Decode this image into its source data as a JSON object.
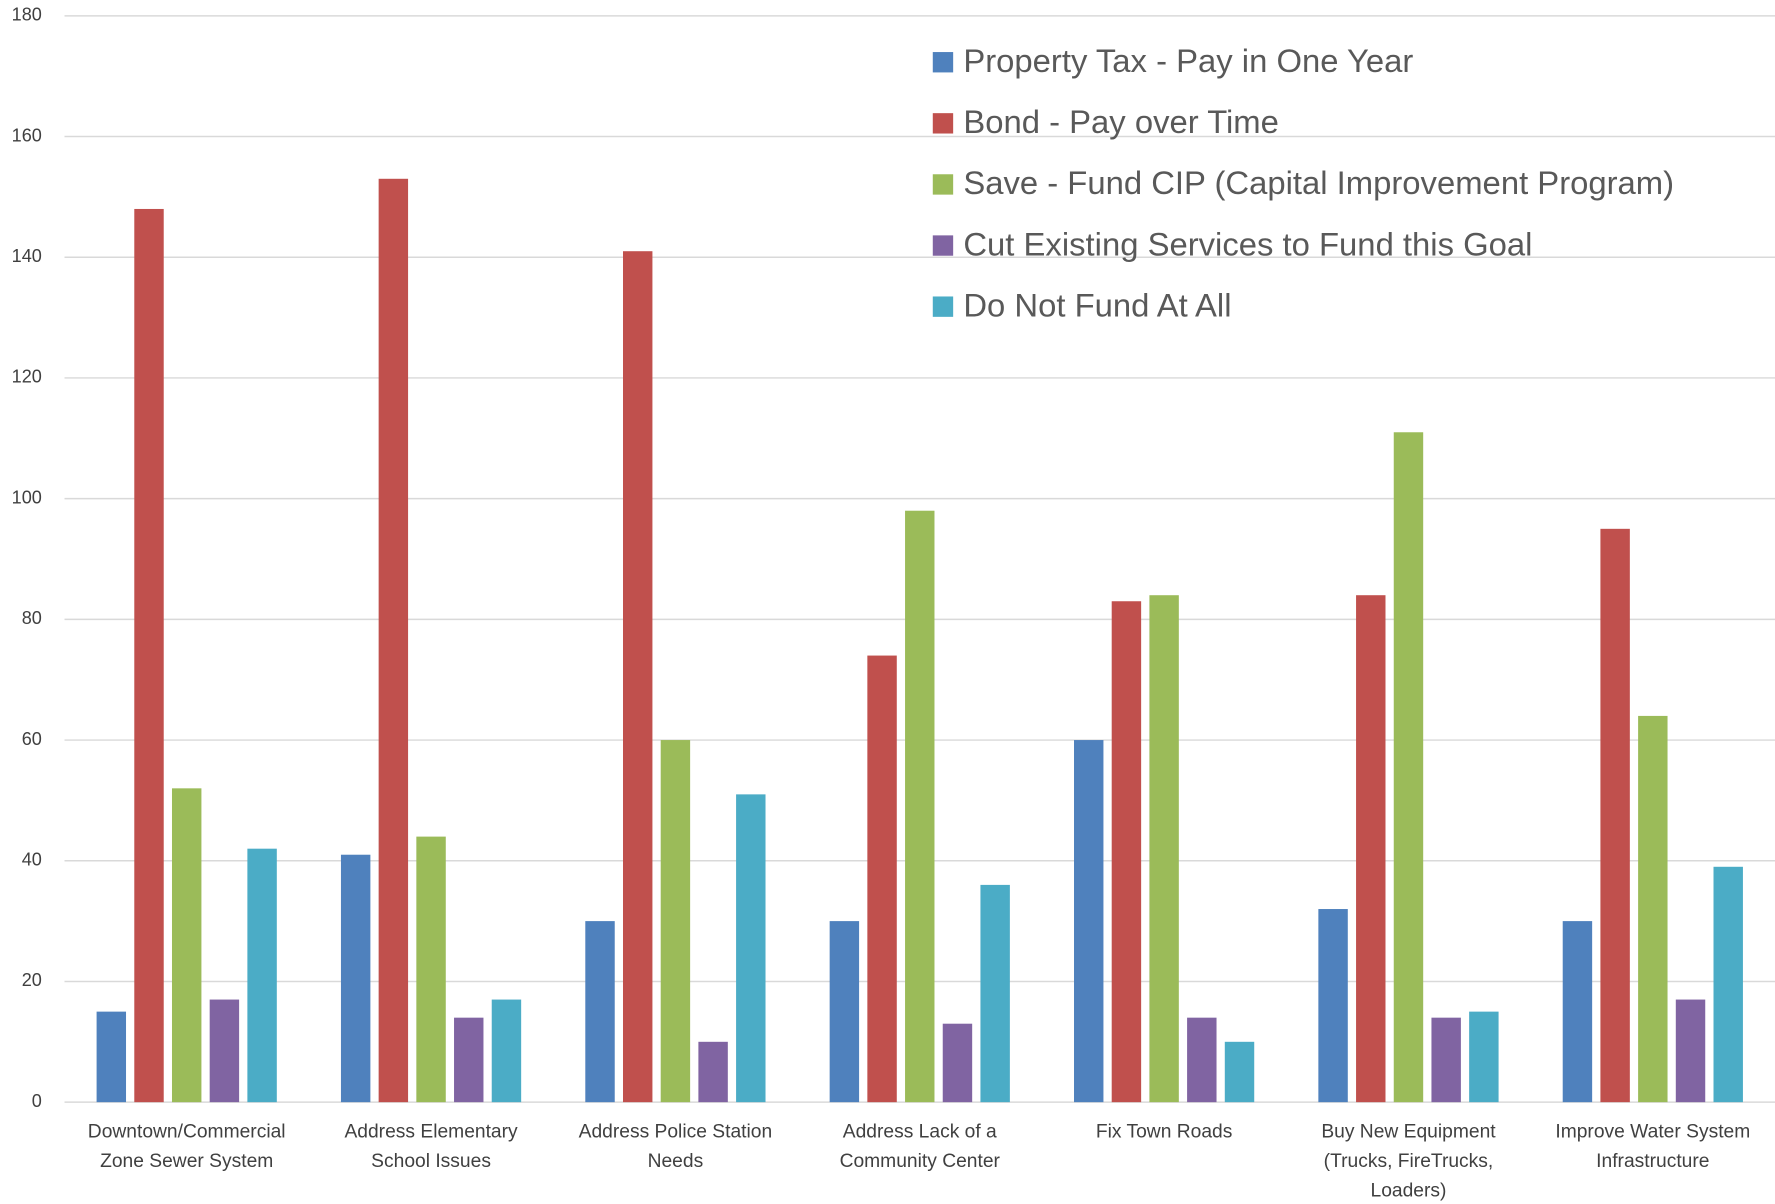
{
  "chart_data": {
    "type": "bar",
    "categories": [
      "Downtown/Commercial Zone Sewer System",
      "Address Elementary School Issues",
      "Address Police Station Needs",
      "Address Lack of a Community Center",
      "Fix Town Roads",
      "Buy New Equipment (Trucks, FireTrucks, Loaders)",
      "Improve Water System Infrastructure"
    ],
    "series": [
      {
        "name": "Property Tax - Pay in One Year",
        "color": "#4f81bd",
        "values": [
          15,
          41,
          30,
          30,
          60,
          32,
          30
        ]
      },
      {
        "name": "Bond - Pay over Time",
        "color": "#c0504d",
        "values": [
          148,
          153,
          141,
          74,
          83,
          84,
          95
        ]
      },
      {
        "name": "Save - Fund CIP (Capital Improvement Program)",
        "color": "#9bbb59",
        "values": [
          52,
          44,
          60,
          98,
          84,
          111,
          64
        ]
      },
      {
        "name": "Cut Existing Services to Fund this Goal",
        "color": "#8064a2",
        "values": [
          17,
          14,
          10,
          13,
          14,
          14,
          17
        ]
      },
      {
        "name": "Do Not Fund At All",
        "color": "#4bacc6",
        "values": [
          42,
          17,
          51,
          36,
          10,
          15,
          39
        ]
      }
    ],
    "ylim": [
      0,
      180
    ],
    "yticks": [
      0,
      20,
      40,
      60,
      80,
      100,
      120,
      140,
      160,
      180
    ],
    "grid": true,
    "legend": "upper right"
  }
}
